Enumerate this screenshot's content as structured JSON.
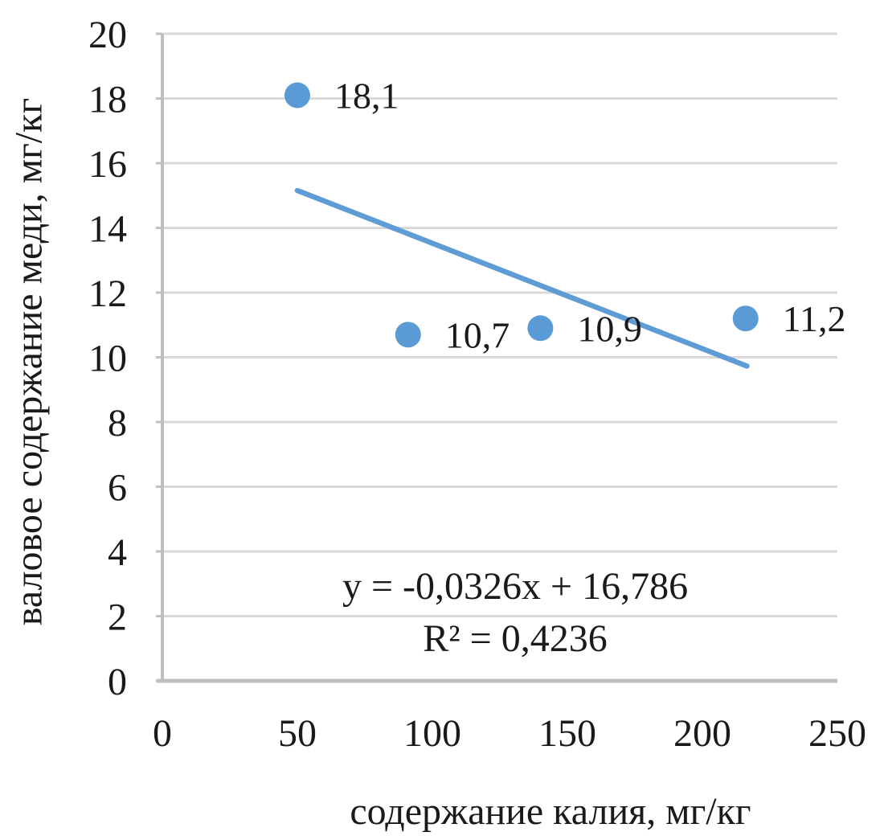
{
  "chart_data": {
    "type": "scatter",
    "title": "",
    "xlabel": "содержание калия, мг/кг",
    "ylabel": "валовое содержание меди, мг/кг",
    "xlim": [
      0,
      250
    ],
    "ylim": [
      0,
      20
    ],
    "xticks": [
      0,
      50,
      100,
      150,
      200,
      250
    ],
    "yticks": [
      0,
      2,
      4,
      6,
      8,
      10,
      12,
      14,
      16,
      18,
      20
    ],
    "grid": "horizontal",
    "legend": "none",
    "points": [
      {
        "x": 50,
        "y": 18.1,
        "label": "18,1"
      },
      {
        "x": 91,
        "y": 10.7,
        "label": "10,7"
      },
      {
        "x": 140,
        "y": 10.9,
        "label": "10,9"
      },
      {
        "x": 216,
        "y": 11.2,
        "label": "11,2"
      }
    ],
    "trendline": {
      "slope": -0.0326,
      "intercept": 16.786,
      "x_start": 50,
      "x_end": 216.5,
      "equation_label": "y = -0,0326x + 16,786",
      "r_squared_label": "R² = 0,4236"
    },
    "colors": {
      "point": "#5b9bd5",
      "trendline": "#5f9cd6",
      "gridline": "#d9d9d9",
      "axis": "#bfbfbf",
      "text": "#1a1a1a"
    }
  }
}
